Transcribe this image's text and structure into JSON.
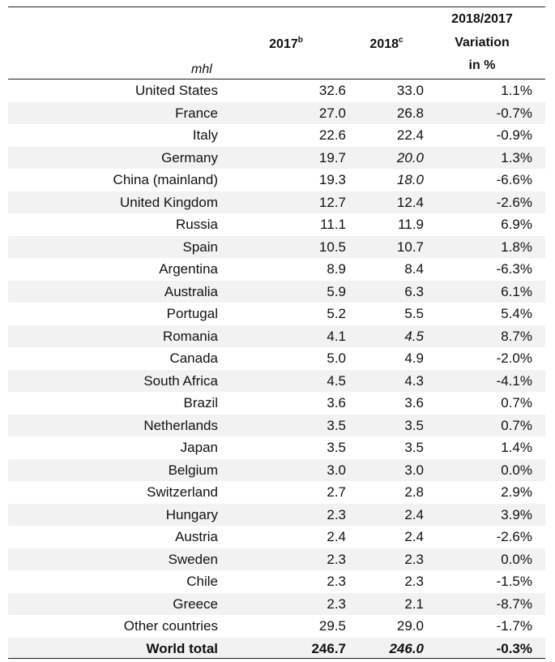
{
  "header": {
    "unit": "mhl",
    "col_2017": "2017",
    "col_2017_note": "b",
    "col_2018": "2018",
    "col_2018_note": "c",
    "col_var_line1": "2018/2017",
    "col_var_line2": "Variation",
    "col_var_line3": "in %"
  },
  "rows": [
    {
      "country": "United States",
      "y2017": "32.6",
      "y2018": "33.0",
      "variation": "1.1%"
    },
    {
      "country": "France",
      "y2017": "27.0",
      "y2018": "26.8",
      "variation": "-0.7%"
    },
    {
      "country": "Italy",
      "y2017": "22.6",
      "y2018": "22.4",
      "variation": "-0.9%"
    },
    {
      "country": "Germany",
      "y2017": "19.7",
      "y2018": "20.0",
      "variation": "1.3%",
      "y2018_italic": true
    },
    {
      "country": "China (mainland)",
      "y2017": "19.3",
      "y2018": "18.0",
      "variation": "-6.6%",
      "y2018_italic": true
    },
    {
      "country": "United Kingdom",
      "y2017": "12.7",
      "y2018": "12.4",
      "variation": "-2.6%"
    },
    {
      "country": "Russia",
      "y2017": "11.1",
      "y2018": "11.9",
      "variation": "6.9%"
    },
    {
      "country": "Spain",
      "y2017": "10.5",
      "y2018": "10.7",
      "variation": "1.8%"
    },
    {
      "country": "Argentina",
      "y2017": "8.9",
      "y2018": "8.4",
      "variation": "-6.3%"
    },
    {
      "country": "Australia",
      "y2017": "5.9",
      "y2018": "6.3",
      "variation": "6.1%"
    },
    {
      "country": "Portugal",
      "y2017": "5.2",
      "y2018": "5.5",
      "variation": "5.4%"
    },
    {
      "country": "Romania",
      "y2017": "4.1",
      "y2018": "4.5",
      "variation": "8.7%",
      "y2018_italic": true
    },
    {
      "country": "Canada",
      "y2017": "5.0",
      "y2018": "4.9",
      "variation": "-2.0%"
    },
    {
      "country": "South Africa",
      "y2017": "4.5",
      "y2018": "4.3",
      "variation": "-4.1%"
    },
    {
      "country": "Brazil",
      "y2017": "3.6",
      "y2018": "3.6",
      "variation": "0.7%"
    },
    {
      "country": "Netherlands",
      "y2017": "3.5",
      "y2018": "3.5",
      "variation": "0.7%"
    },
    {
      "country": "Japan",
      "y2017": "3.5",
      "y2018": "3.5",
      "variation": "1.4%"
    },
    {
      "country": "Belgium",
      "y2017": "3.0",
      "y2018": "3.0",
      "variation": "0.0%"
    },
    {
      "country": "Switzerland",
      "y2017": "2.7",
      "y2018": "2.8",
      "variation": "2.9%"
    },
    {
      "country": "Hungary",
      "y2017": "2.3",
      "y2018": "2.4",
      "variation": "3.9%"
    },
    {
      "country": "Austria",
      "y2017": "2.4",
      "y2018": "2.4",
      "variation": "-2.6%"
    },
    {
      "country": "Sweden",
      "y2017": "2.3",
      "y2018": "2.3",
      "variation": "0.0%"
    },
    {
      "country": "Chile",
      "y2017": "2.3",
      "y2018": "2.3",
      "variation": "-1.5%"
    },
    {
      "country": "Greece",
      "y2017": "2.3",
      "y2018": "2.1",
      "variation": "-8.7%"
    },
    {
      "country": "Other countries",
      "y2017": "29.5",
      "y2018": "29.0",
      "variation": "-1.7%"
    },
    {
      "country": "World total",
      "y2017": "246.7",
      "y2018": "246.0",
      "variation": "-0.3%",
      "y2018_italic": true,
      "total": true
    }
  ]
}
